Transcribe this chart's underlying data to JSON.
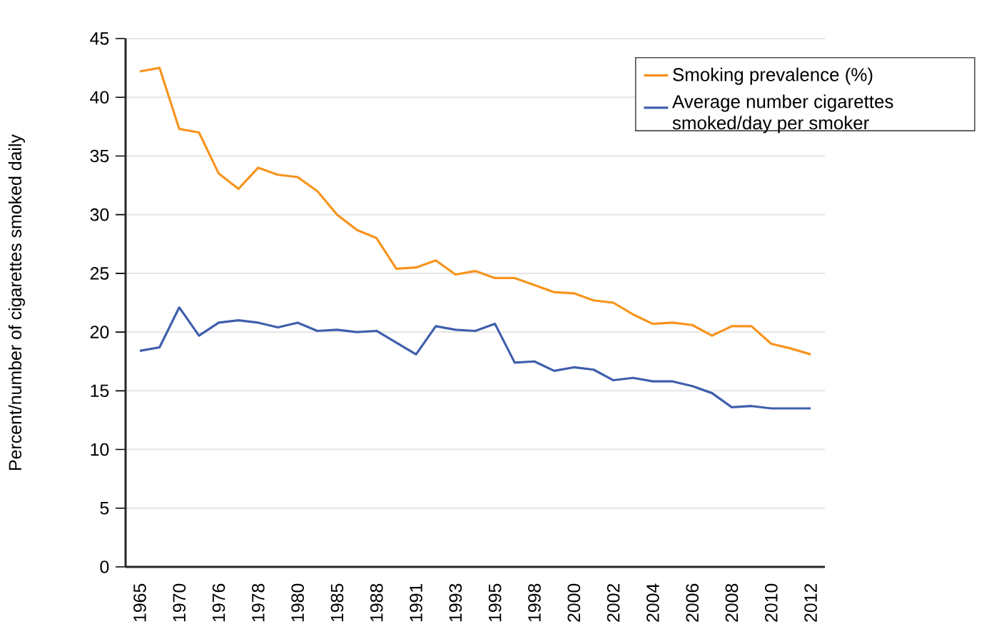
{
  "chart_data": {
    "type": "line",
    "ylabel": "Percent/number of cigarettes smoked daily",
    "categories": [
      "1965",
      null,
      "1970",
      null,
      "1976",
      null,
      "1978",
      null,
      "1980",
      null,
      "1985",
      null,
      "1988",
      null,
      "1991",
      null,
      "1993",
      null,
      "1995",
      null,
      "1998",
      null,
      "2000",
      null,
      "2002",
      null,
      "2004",
      null,
      "2006",
      null,
      "2008",
      null,
      "2010",
      null,
      "2012"
    ],
    "series": [
      {
        "name": "Smoking prevalence (%)",
        "color": "#f7941d",
        "values": [
          42.2,
          42.5,
          37.3,
          37.0,
          33.5,
          32.2,
          34.0,
          33.4,
          33.2,
          32.0,
          30.0,
          28.7,
          28.0,
          25.4,
          25.5,
          26.1,
          24.9,
          25.2,
          24.6,
          24.6,
          24.0,
          23.4,
          23.3,
          22.7,
          22.5,
          21.5,
          20.7,
          20.8,
          20.6,
          19.7,
          20.5,
          20.5,
          19.0,
          18.6,
          18.1
        ]
      },
      {
        "name": "Average number cigarettes smoked/day per smoker",
        "color": "#3f5fac",
        "values": [
          18.4,
          18.7,
          22.1,
          19.7,
          20.8,
          21.0,
          20.8,
          20.4,
          20.8,
          20.1,
          20.2,
          20.0,
          20.1,
          19.1,
          18.1,
          20.5,
          20.2,
          20.1,
          20.7,
          17.4,
          17.5,
          16.7,
          17.0,
          16.8,
          15.9,
          16.1,
          15.8,
          15.8,
          15.4,
          14.8,
          13.6,
          13.7,
          13.5,
          13.5,
          13.5
        ]
      }
    ],
    "ylim": [
      0,
      45
    ],
    "yticks": [
      0,
      5,
      10,
      15,
      20,
      25,
      30,
      35,
      40,
      45
    ],
    "grid": "y",
    "legend": "top right",
    "marker": "none",
    "line_style": "solid"
  }
}
